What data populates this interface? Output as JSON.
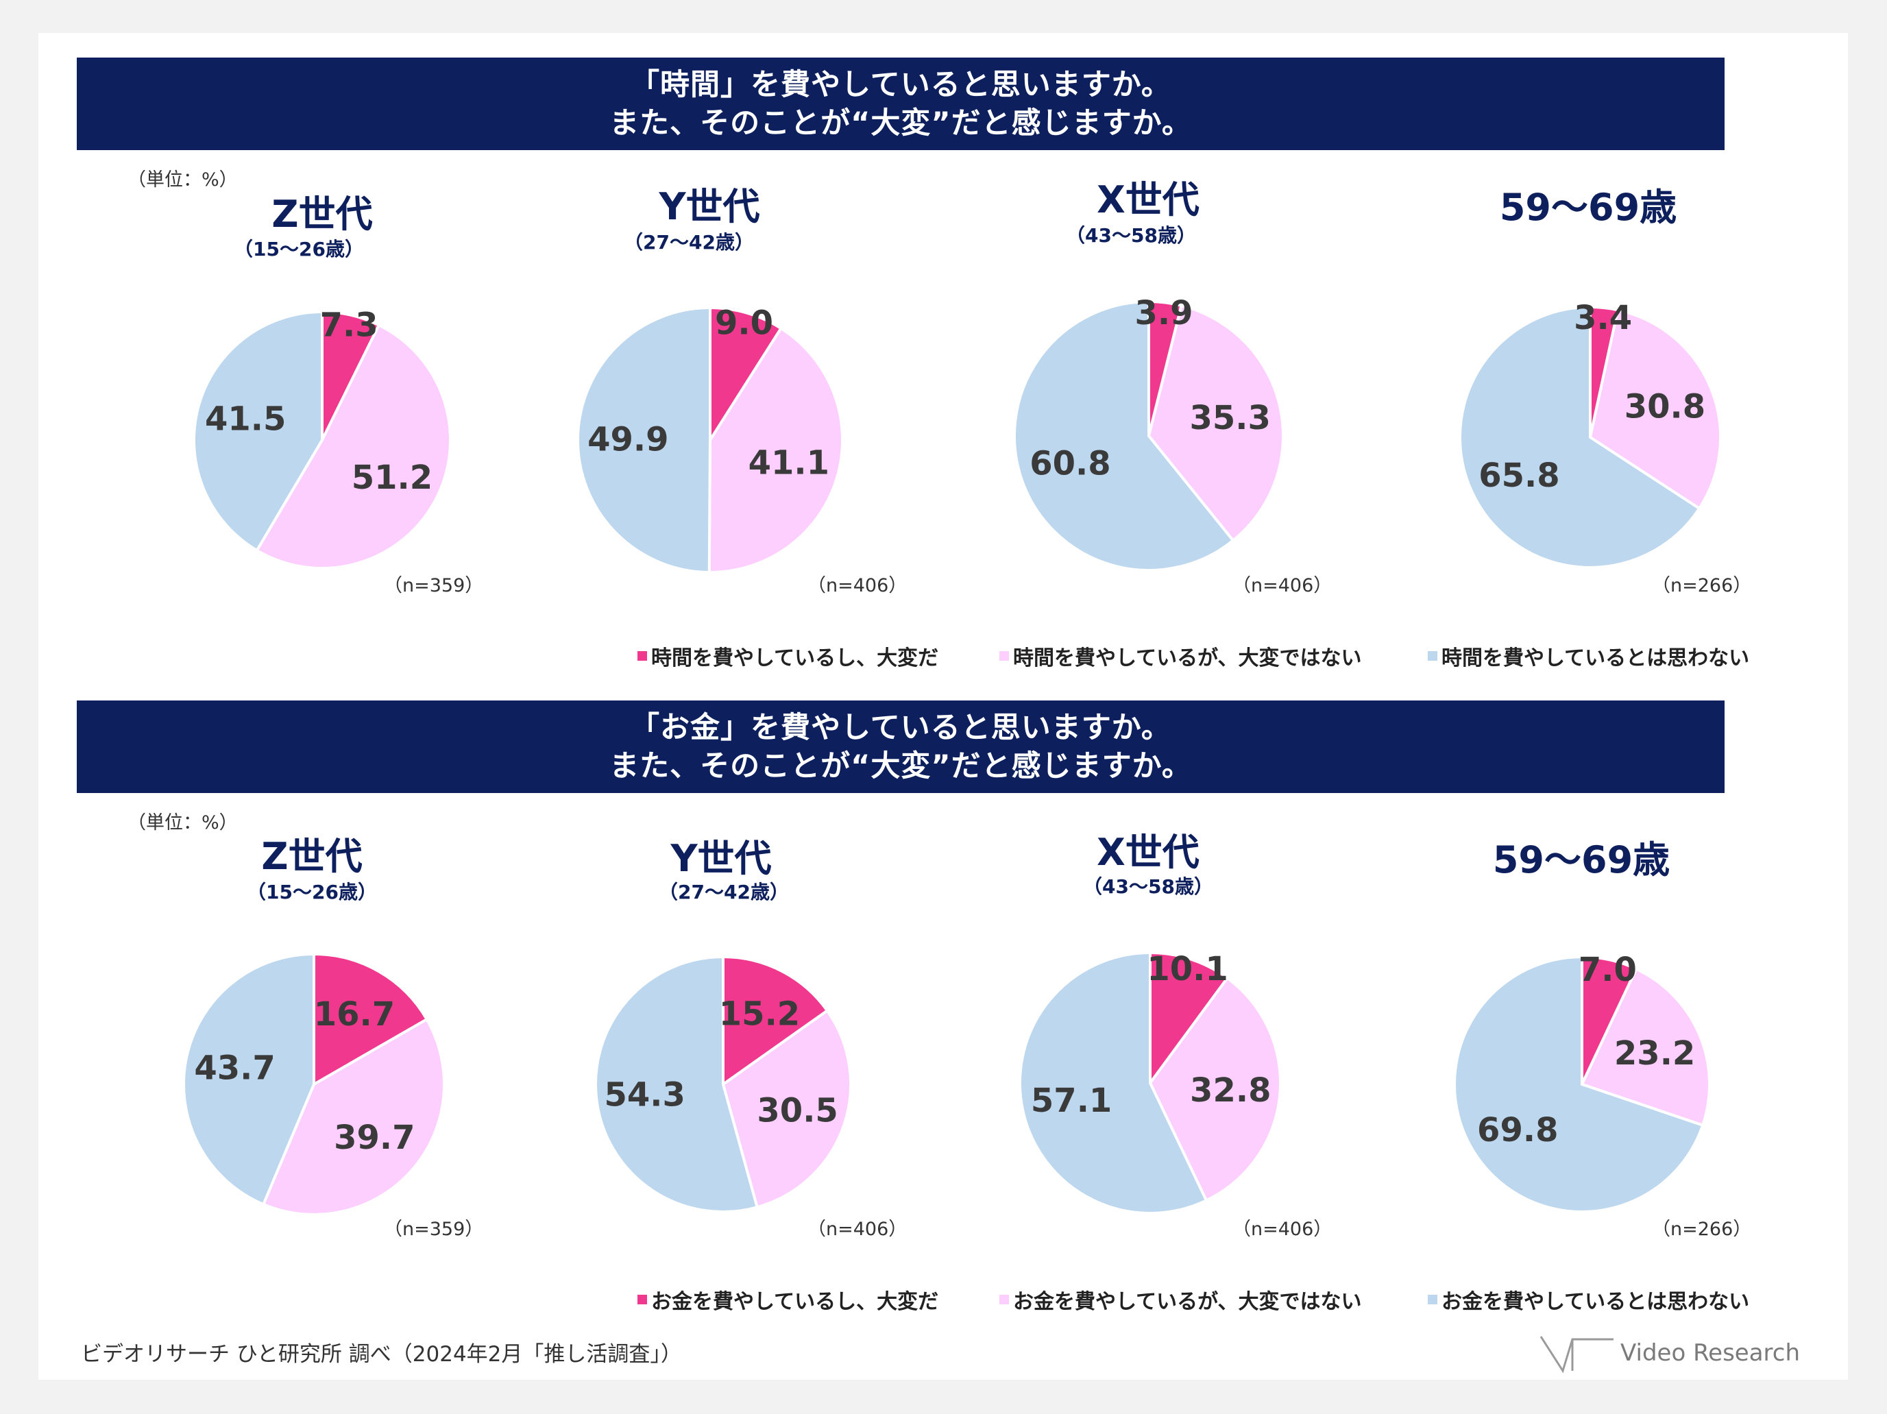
{
  "colors": {
    "pink_dark": "#f0398e",
    "pink_light": "#fccfff",
    "blue_light": "#bdd7ee",
    "navy": "#0d1f5c"
  },
  "chart_data": [
    {
      "type": "pie",
      "title": "「時間」を費やしていると思いますか。",
      "subtitle": "また、そのことが“大変”だと感じますか。",
      "unit_label": "（単位：%）",
      "legend": [
        "時間を費やしているし、大変だ",
        "時間を費やしているが、大変ではない",
        "時間を費やしているとは思わない"
      ],
      "pies": [
        {
          "name": "Z世代",
          "age": "（15～26歳）",
          "n": "（n=359）",
          "values": [
            7.3,
            51.2,
            41.5
          ]
        },
        {
          "name": "Y世代",
          "age": "（27～42歳）",
          "n": "（n=406）",
          "values": [
            9.0,
            41.1,
            49.9
          ]
        },
        {
          "name": "X世代",
          "age": "（43～58歳）",
          "n": "（n=406）",
          "values": [
            3.9,
            35.3,
            60.8
          ]
        },
        {
          "name": "59～69歳",
          "age": "",
          "n": "（n=266）",
          "values": [
            3.4,
            30.8,
            65.8
          ]
        }
      ]
    },
    {
      "type": "pie",
      "title": "「お金」を費やしていると思いますか。",
      "subtitle": "また、そのことが“大変”だと感じますか。",
      "unit_label": "（単位：%）",
      "legend": [
        "お金を費やしているし、大変だ",
        "お金を費やしているが、大変ではない",
        "お金を費やしているとは思わない"
      ],
      "pies": [
        {
          "name": "Z世代",
          "age": "（15～26歳）",
          "n": "（n=359）",
          "values": [
            16.7,
            39.7,
            43.7
          ]
        },
        {
          "name": "Y世代",
          "age": "（27～42歳）",
          "n": "（n=406）",
          "values": [
            15.2,
            30.5,
            54.3
          ]
        },
        {
          "name": "X世代",
          "age": "（43～58歳）",
          "n": "（n=406）",
          "values": [
            10.1,
            32.8,
            57.1
          ]
        },
        {
          "name": "59～69歳",
          "age": "",
          "n": "（n=266）",
          "values": [
            7.0,
            23.2,
            69.8
          ]
        }
      ]
    }
  ],
  "footer": {
    "source": "ビデオリサーチ ひと研究所 調べ（2024年2月「推し活調査」）",
    "logo_text": "Video Research"
  }
}
